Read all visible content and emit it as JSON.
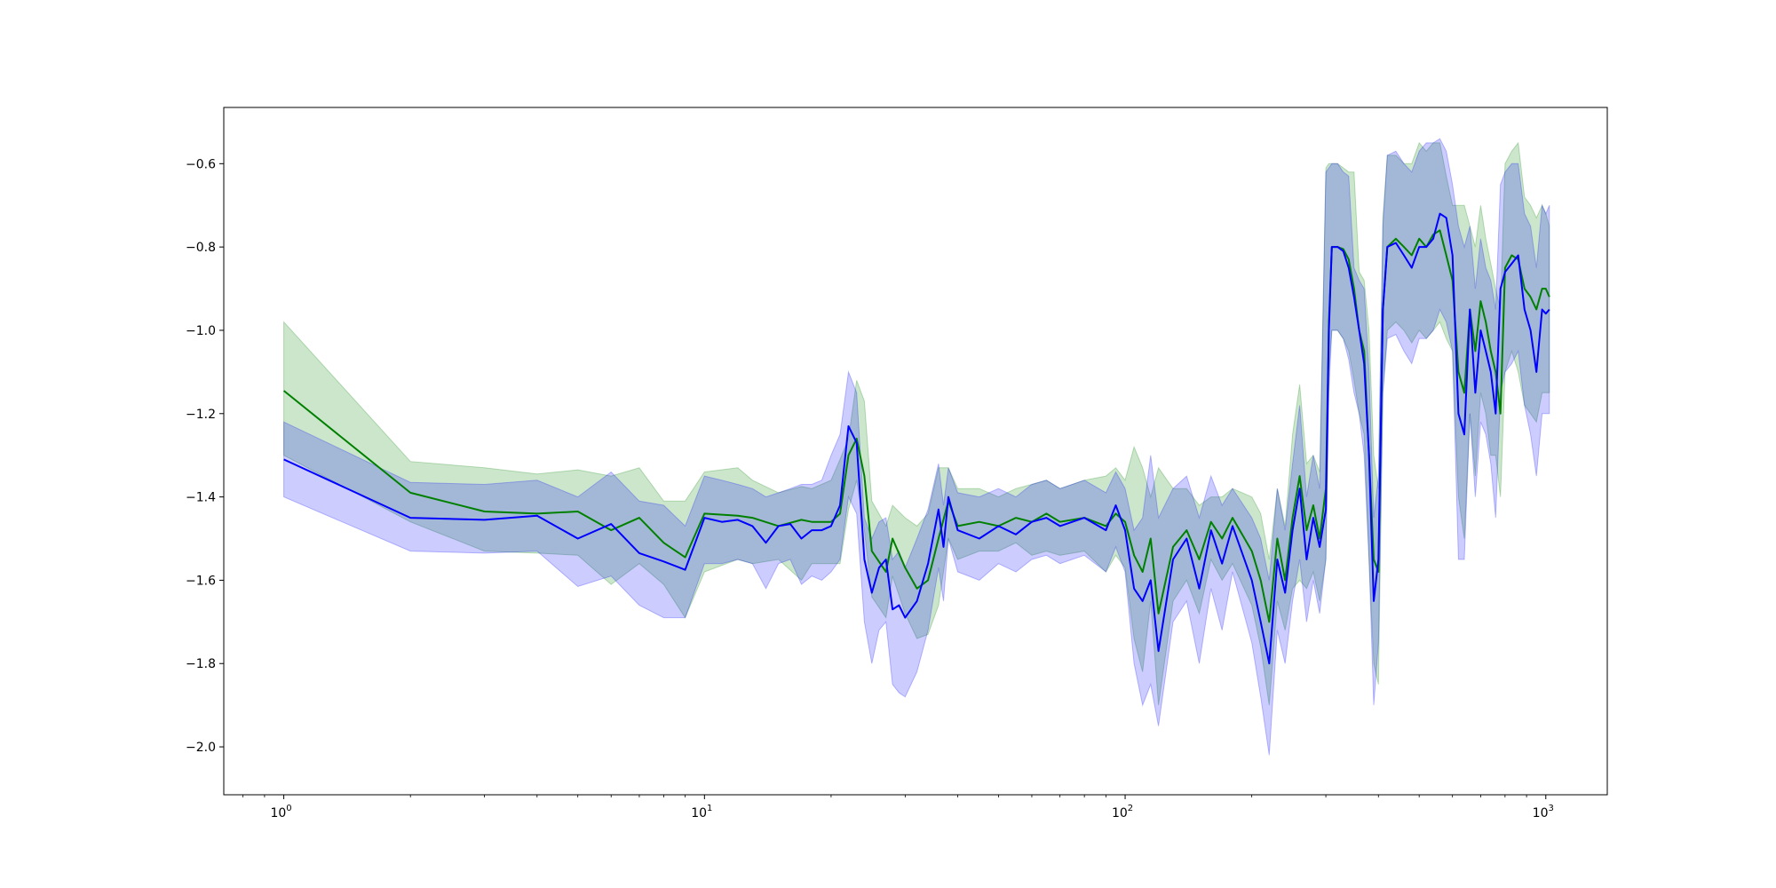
{
  "chart_data": {
    "type": "area",
    "title": "",
    "xlabel": "",
    "ylabel": "",
    "x_scale": "log",
    "xlim": [
      0.72,
      1400
    ],
    "ylim": [
      -2.115,
      -0.465
    ],
    "x_ticks": [
      {
        "value": 1,
        "base": "10",
        "exp": "0"
      },
      {
        "value": 10,
        "base": "10",
        "exp": "1"
      },
      {
        "value": 100,
        "base": "10",
        "exp": "2"
      },
      {
        "value": 1000,
        "base": "10",
        "exp": "3"
      }
    ],
    "y_ticks": [
      {
        "value": -2.0,
        "label": "−2.0"
      },
      {
        "value": -1.8,
        "label": "−1.8"
      },
      {
        "value": -1.6,
        "label": "−1.6"
      },
      {
        "value": -1.4,
        "label": "−1.4"
      },
      {
        "value": -1.2,
        "label": "−1.2"
      },
      {
        "value": -1.0,
        "label": "−1.0"
      },
      {
        "value": -0.8,
        "label": "−0.8"
      },
      {
        "value": -0.6,
        "label": "−0.6"
      }
    ],
    "grid": false,
    "legend": "none",
    "series": [
      {
        "color": "#008000",
        "band_opacity": 0.2,
        "x": [
          1,
          2,
          3,
          4,
          5,
          6,
          7,
          8,
          9,
          10,
          12,
          13,
          15,
          17,
          18,
          20,
          21,
          22,
          23,
          24,
          25,
          27,
          28,
          30,
          32,
          34,
          36,
          38,
          40,
          45,
          50,
          55,
          60,
          65,
          70,
          80,
          90,
          95,
          100,
          105,
          110,
          115,
          120,
          130,
          140,
          150,
          160,
          170,
          180,
          200,
          210,
          220,
          230,
          240,
          250,
          260,
          270,
          280,
          290,
          300,
          305,
          310,
          320,
          330,
          340,
          350,
          360,
          370,
          380,
          390,
          400,
          410,
          420,
          440,
          460,
          480,
          500,
          520,
          540,
          560,
          580,
          600,
          620,
          640,
          660,
          680,
          700,
          720,
          740,
          760,
          780,
          800,
          830,
          860,
          890,
          920,
          950,
          980,
          1000,
          1020
        ],
        "y": [
          -1.145,
          -1.39,
          -1.435,
          -1.44,
          -1.435,
          -1.48,
          -1.45,
          -1.51,
          -1.545,
          -1.44,
          -1.445,
          -1.45,
          -1.47,
          -1.455,
          -1.46,
          -1.46,
          -1.44,
          -1.3,
          -1.26,
          -1.35,
          -1.53,
          -1.58,
          -1.5,
          -1.57,
          -1.62,
          -1.6,
          -1.5,
          -1.41,
          -1.47,
          -1.46,
          -1.47,
          -1.45,
          -1.46,
          -1.44,
          -1.46,
          -1.45,
          -1.47,
          -1.44,
          -1.46,
          -1.54,
          -1.58,
          -1.5,
          -1.68,
          -1.52,
          -1.48,
          -1.55,
          -1.46,
          -1.5,
          -1.45,
          -1.53,
          -1.6,
          -1.7,
          -1.5,
          -1.6,
          -1.45,
          -1.35,
          -1.48,
          -1.42,
          -1.5,
          -1.38,
          -0.98,
          -0.8,
          -0.8,
          -0.805,
          -0.83,
          -0.9,
          -1.0,
          -1.05,
          -1.3,
          -1.55,
          -1.58,
          -0.95,
          -0.8,
          -0.78,
          -0.8,
          -0.82,
          -0.78,
          -0.8,
          -0.77,
          -0.76,
          -0.82,
          -0.88,
          -1.1,
          -1.15,
          -0.95,
          -1.05,
          -0.93,
          -0.98,
          -1.05,
          -1.1,
          -1.2,
          -0.85,
          -0.82,
          -0.83,
          -0.9,
          -0.92,
          -0.95,
          -0.9,
          -0.9,
          -0.92
        ],
        "upper": [
          -0.98,
          -1.315,
          -1.33,
          -1.345,
          -1.335,
          -1.35,
          -1.33,
          -1.41,
          -1.41,
          -1.34,
          -1.33,
          -1.36,
          -1.39,
          -1.375,
          -1.38,
          -1.36,
          -1.31,
          -1.26,
          -1.12,
          -1.17,
          -1.41,
          -1.47,
          -1.42,
          -1.45,
          -1.47,
          -1.44,
          -1.33,
          -1.33,
          -1.38,
          -1.38,
          -1.4,
          -1.38,
          -1.37,
          -1.36,
          -1.38,
          -1.36,
          -1.35,
          -1.33,
          -1.36,
          -1.28,
          -1.33,
          -1.4,
          -1.33,
          -1.38,
          -1.38,
          -1.42,
          -1.4,
          -1.4,
          -1.38,
          -1.4,
          -1.44,
          -1.55,
          -1.38,
          -1.47,
          -1.25,
          -1.13,
          -1.32,
          -1.3,
          -1.34,
          -0.61,
          -0.6,
          -0.6,
          -0.6,
          -0.61,
          -0.62,
          -0.62,
          -0.86,
          -0.88,
          -1.0,
          -1.3,
          -1.38,
          -0.73,
          -0.58,
          -0.58,
          -0.6,
          -0.6,
          -0.55,
          -0.57,
          -0.55,
          -0.55,
          -0.63,
          -0.7,
          -0.7,
          -0.7,
          -0.75,
          -0.8,
          -0.7,
          -0.78,
          -0.84,
          -0.9,
          -0.95,
          -0.6,
          -0.57,
          -0.55,
          -0.68,
          -0.7,
          -0.73,
          -0.7,
          -0.72,
          -0.75
        ],
        "lower": [
          -1.3,
          -1.46,
          -1.53,
          -1.535,
          -1.54,
          -1.61,
          -1.56,
          -1.61,
          -1.69,
          -1.58,
          -1.55,
          -1.56,
          -1.55,
          -1.6,
          -1.56,
          -1.56,
          -1.56,
          -1.43,
          -1.36,
          -1.48,
          -1.64,
          -1.69,
          -1.59,
          -1.68,
          -1.74,
          -1.73,
          -1.66,
          -1.5,
          -1.55,
          -1.53,
          -1.53,
          -1.51,
          -1.54,
          -1.53,
          -1.54,
          -1.53,
          -1.58,
          -1.54,
          -1.57,
          -1.74,
          -1.82,
          -1.65,
          -1.9,
          -1.65,
          -1.6,
          -1.68,
          -1.55,
          -1.6,
          -1.56,
          -1.66,
          -1.76,
          -1.9,
          -1.65,
          -1.72,
          -1.62,
          -1.6,
          -1.62,
          -1.58,
          -1.65,
          -1.55,
          -1.1,
          -1.0,
          -1.0,
          -1.02,
          -1.05,
          -1.12,
          -1.2,
          -1.25,
          -1.55,
          -1.8,
          -1.85,
          -1.15,
          -1.0,
          -0.98,
          -1.0,
          -1.03,
          -1.0,
          -1.02,
          -1.0,
          -0.98,
          -1.02,
          -1.05,
          -1.4,
          -1.5,
          -1.2,
          -1.35,
          -1.15,
          -1.2,
          -1.3,
          -1.3,
          -1.4,
          -1.1,
          -1.05,
          -1.1,
          -1.18,
          -1.2,
          -1.22,
          -1.15,
          -1.15,
          -1.15
        ]
      },
      {
        "color": "#0000ff",
        "band_opacity": 0.2,
        "x": [
          1,
          2,
          3,
          4,
          5,
          6,
          7,
          8,
          9,
          10,
          11,
          12,
          13,
          14,
          15,
          16,
          17,
          18,
          19,
          20,
          21,
          22,
          23,
          24,
          25,
          26,
          27,
          28,
          29,
          30,
          32,
          34,
          36,
          37,
          38,
          40,
          45,
          50,
          55,
          60,
          65,
          70,
          80,
          90,
          95,
          100,
          105,
          110,
          115,
          120,
          130,
          140,
          150,
          160,
          170,
          180,
          200,
          210,
          220,
          230,
          240,
          250,
          260,
          270,
          280,
          290,
          300,
          305,
          310,
          320,
          330,
          340,
          350,
          360,
          370,
          380,
          390,
          400,
          410,
          420,
          440,
          460,
          480,
          500,
          520,
          540,
          560,
          580,
          600,
          620,
          640,
          660,
          680,
          700,
          720,
          740,
          760,
          780,
          800,
          830,
          860,
          890,
          920,
          950,
          980,
          1000,
          1020
        ],
        "y": [
          -1.31,
          -1.45,
          -1.455,
          -1.445,
          -1.5,
          -1.465,
          -1.535,
          -1.555,
          -1.575,
          -1.45,
          -1.46,
          -1.455,
          -1.47,
          -1.51,
          -1.47,
          -1.465,
          -1.5,
          -1.48,
          -1.48,
          -1.47,
          -1.42,
          -1.23,
          -1.27,
          -1.55,
          -1.63,
          -1.57,
          -1.55,
          -1.67,
          -1.66,
          -1.69,
          -1.65,
          -1.56,
          -1.43,
          -1.52,
          -1.4,
          -1.48,
          -1.5,
          -1.47,
          -1.49,
          -1.46,
          -1.45,
          -1.47,
          -1.45,
          -1.48,
          -1.42,
          -1.48,
          -1.62,
          -1.65,
          -1.6,
          -1.77,
          -1.55,
          -1.5,
          -1.62,
          -1.48,
          -1.56,
          -1.47,
          -1.6,
          -1.7,
          -1.8,
          -1.55,
          -1.63,
          -1.48,
          -1.38,
          -1.55,
          -1.45,
          -1.52,
          -1.43,
          -1.0,
          -0.8,
          -0.8,
          -0.81,
          -0.85,
          -0.92,
          -1.0,
          -1.08,
          -1.3,
          -1.65,
          -1.55,
          -0.95,
          -0.8,
          -0.79,
          -0.82,
          -0.85,
          -0.8,
          -0.8,
          -0.78,
          -0.72,
          -0.73,
          -0.82,
          -1.2,
          -1.25,
          -0.95,
          -1.15,
          -1.0,
          -1.05,
          -1.1,
          -1.2,
          -0.9,
          -0.86,
          -0.84,
          -0.82,
          -0.95,
          -1.0,
          -1.1,
          -0.95,
          -0.96,
          -0.95
        ],
        "upper": [
          -1.22,
          -1.365,
          -1.37,
          -1.36,
          -1.4,
          -1.34,
          -1.41,
          -1.42,
          -1.47,
          -1.35,
          -1.36,
          -1.37,
          -1.38,
          -1.4,
          -1.39,
          -1.38,
          -1.37,
          -1.37,
          -1.36,
          -1.3,
          -1.25,
          -1.1,
          -1.15,
          -1.45,
          -1.5,
          -1.46,
          -1.45,
          -1.55,
          -1.53,
          -1.57,
          -1.5,
          -1.43,
          -1.32,
          -1.42,
          -1.33,
          -1.39,
          -1.4,
          -1.38,
          -1.4,
          -1.37,
          -1.36,
          -1.38,
          -1.36,
          -1.39,
          -1.34,
          -1.38,
          -1.48,
          -1.45,
          -1.3,
          -1.45,
          -1.38,
          -1.35,
          -1.45,
          -1.35,
          -1.42,
          -1.38,
          -1.45,
          -1.5,
          -1.6,
          -1.38,
          -1.48,
          -1.32,
          -1.18,
          -1.4,
          -1.3,
          -1.38,
          -0.62,
          -0.61,
          -0.6,
          -0.6,
          -0.62,
          -0.63,
          -0.85,
          -0.88,
          -0.9,
          -1.1,
          -1.45,
          -1.35,
          -0.75,
          -0.58,
          -0.57,
          -0.6,
          -0.62,
          -0.57,
          -0.55,
          -0.55,
          -0.54,
          -0.57,
          -0.65,
          -0.75,
          -0.8,
          -0.75,
          -0.9,
          -0.78,
          -0.85,
          -0.88,
          -0.95,
          -0.65,
          -0.62,
          -0.6,
          -0.6,
          -0.72,
          -0.75,
          -0.85,
          -0.7,
          -0.72,
          -0.7
        ],
        "lower": [
          -1.4,
          -1.53,
          -1.535,
          -1.53,
          -1.615,
          -1.59,
          -1.66,
          -1.69,
          -1.69,
          -1.56,
          -1.56,
          -1.55,
          -1.56,
          -1.62,
          -1.56,
          -1.55,
          -1.61,
          -1.59,
          -1.6,
          -1.58,
          -1.55,
          -1.4,
          -1.44,
          -1.7,
          -1.8,
          -1.72,
          -1.7,
          -1.85,
          -1.87,
          -1.88,
          -1.82,
          -1.72,
          -1.57,
          -1.65,
          -1.5,
          -1.58,
          -1.6,
          -1.56,
          -1.58,
          -1.55,
          -1.54,
          -1.56,
          -1.54,
          -1.58,
          -1.52,
          -1.58,
          -1.8,
          -1.9,
          -1.85,
          -1.95,
          -1.7,
          -1.65,
          -1.8,
          -1.62,
          -1.72,
          -1.58,
          -1.75,
          -1.88,
          -2.02,
          -1.72,
          -1.8,
          -1.65,
          -1.55,
          -1.7,
          -1.6,
          -1.68,
          -1.55,
          -1.15,
          -1.0,
          -1.0,
          -1.02,
          -1.07,
          -1.15,
          -1.2,
          -1.3,
          -1.55,
          -1.9,
          -1.75,
          -1.15,
          -1.02,
          -1.01,
          -1.05,
          -1.08,
          -1.02,
          -1.02,
          -1.0,
          -0.95,
          -0.98,
          -1.05,
          -1.55,
          -1.55,
          -1.2,
          -1.4,
          -1.22,
          -1.25,
          -1.32,
          -1.45,
          -1.15,
          -1.1,
          -1.08,
          -1.05,
          -1.18,
          -1.25,
          -1.35,
          -1.2,
          -1.2,
          -1.2
        ]
      }
    ]
  }
}
